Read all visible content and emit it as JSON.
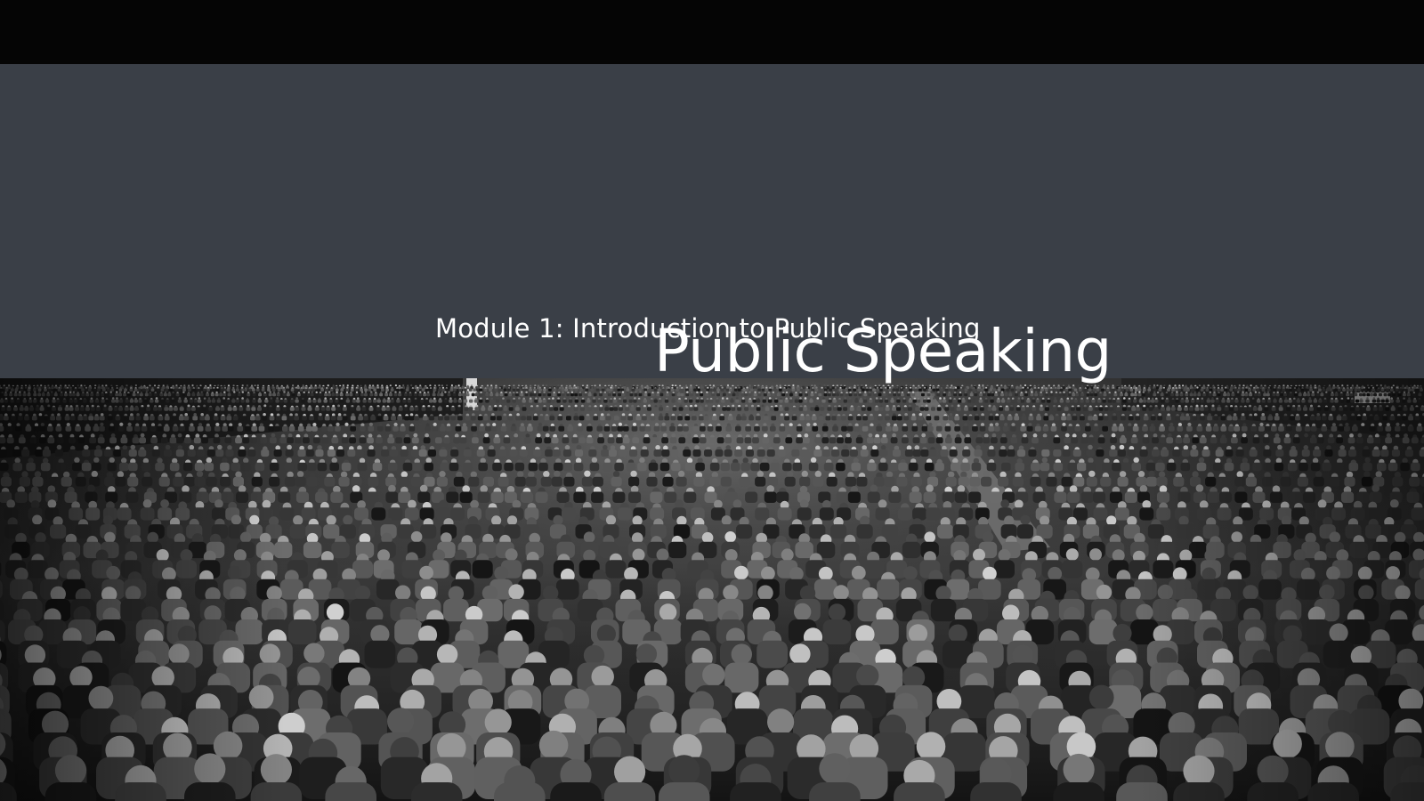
{
  "slide": {
    "subtitle": "Module 1: Introduction to Public Speaking",
    "title": "Public Speaking"
  },
  "photo": {
    "subject": "auditorium-audience-photo",
    "tone": "black-and-white"
  },
  "colors": {
    "top_bar": "#050505",
    "title_band": "#3a3f47",
    "text": "#ffffff"
  }
}
